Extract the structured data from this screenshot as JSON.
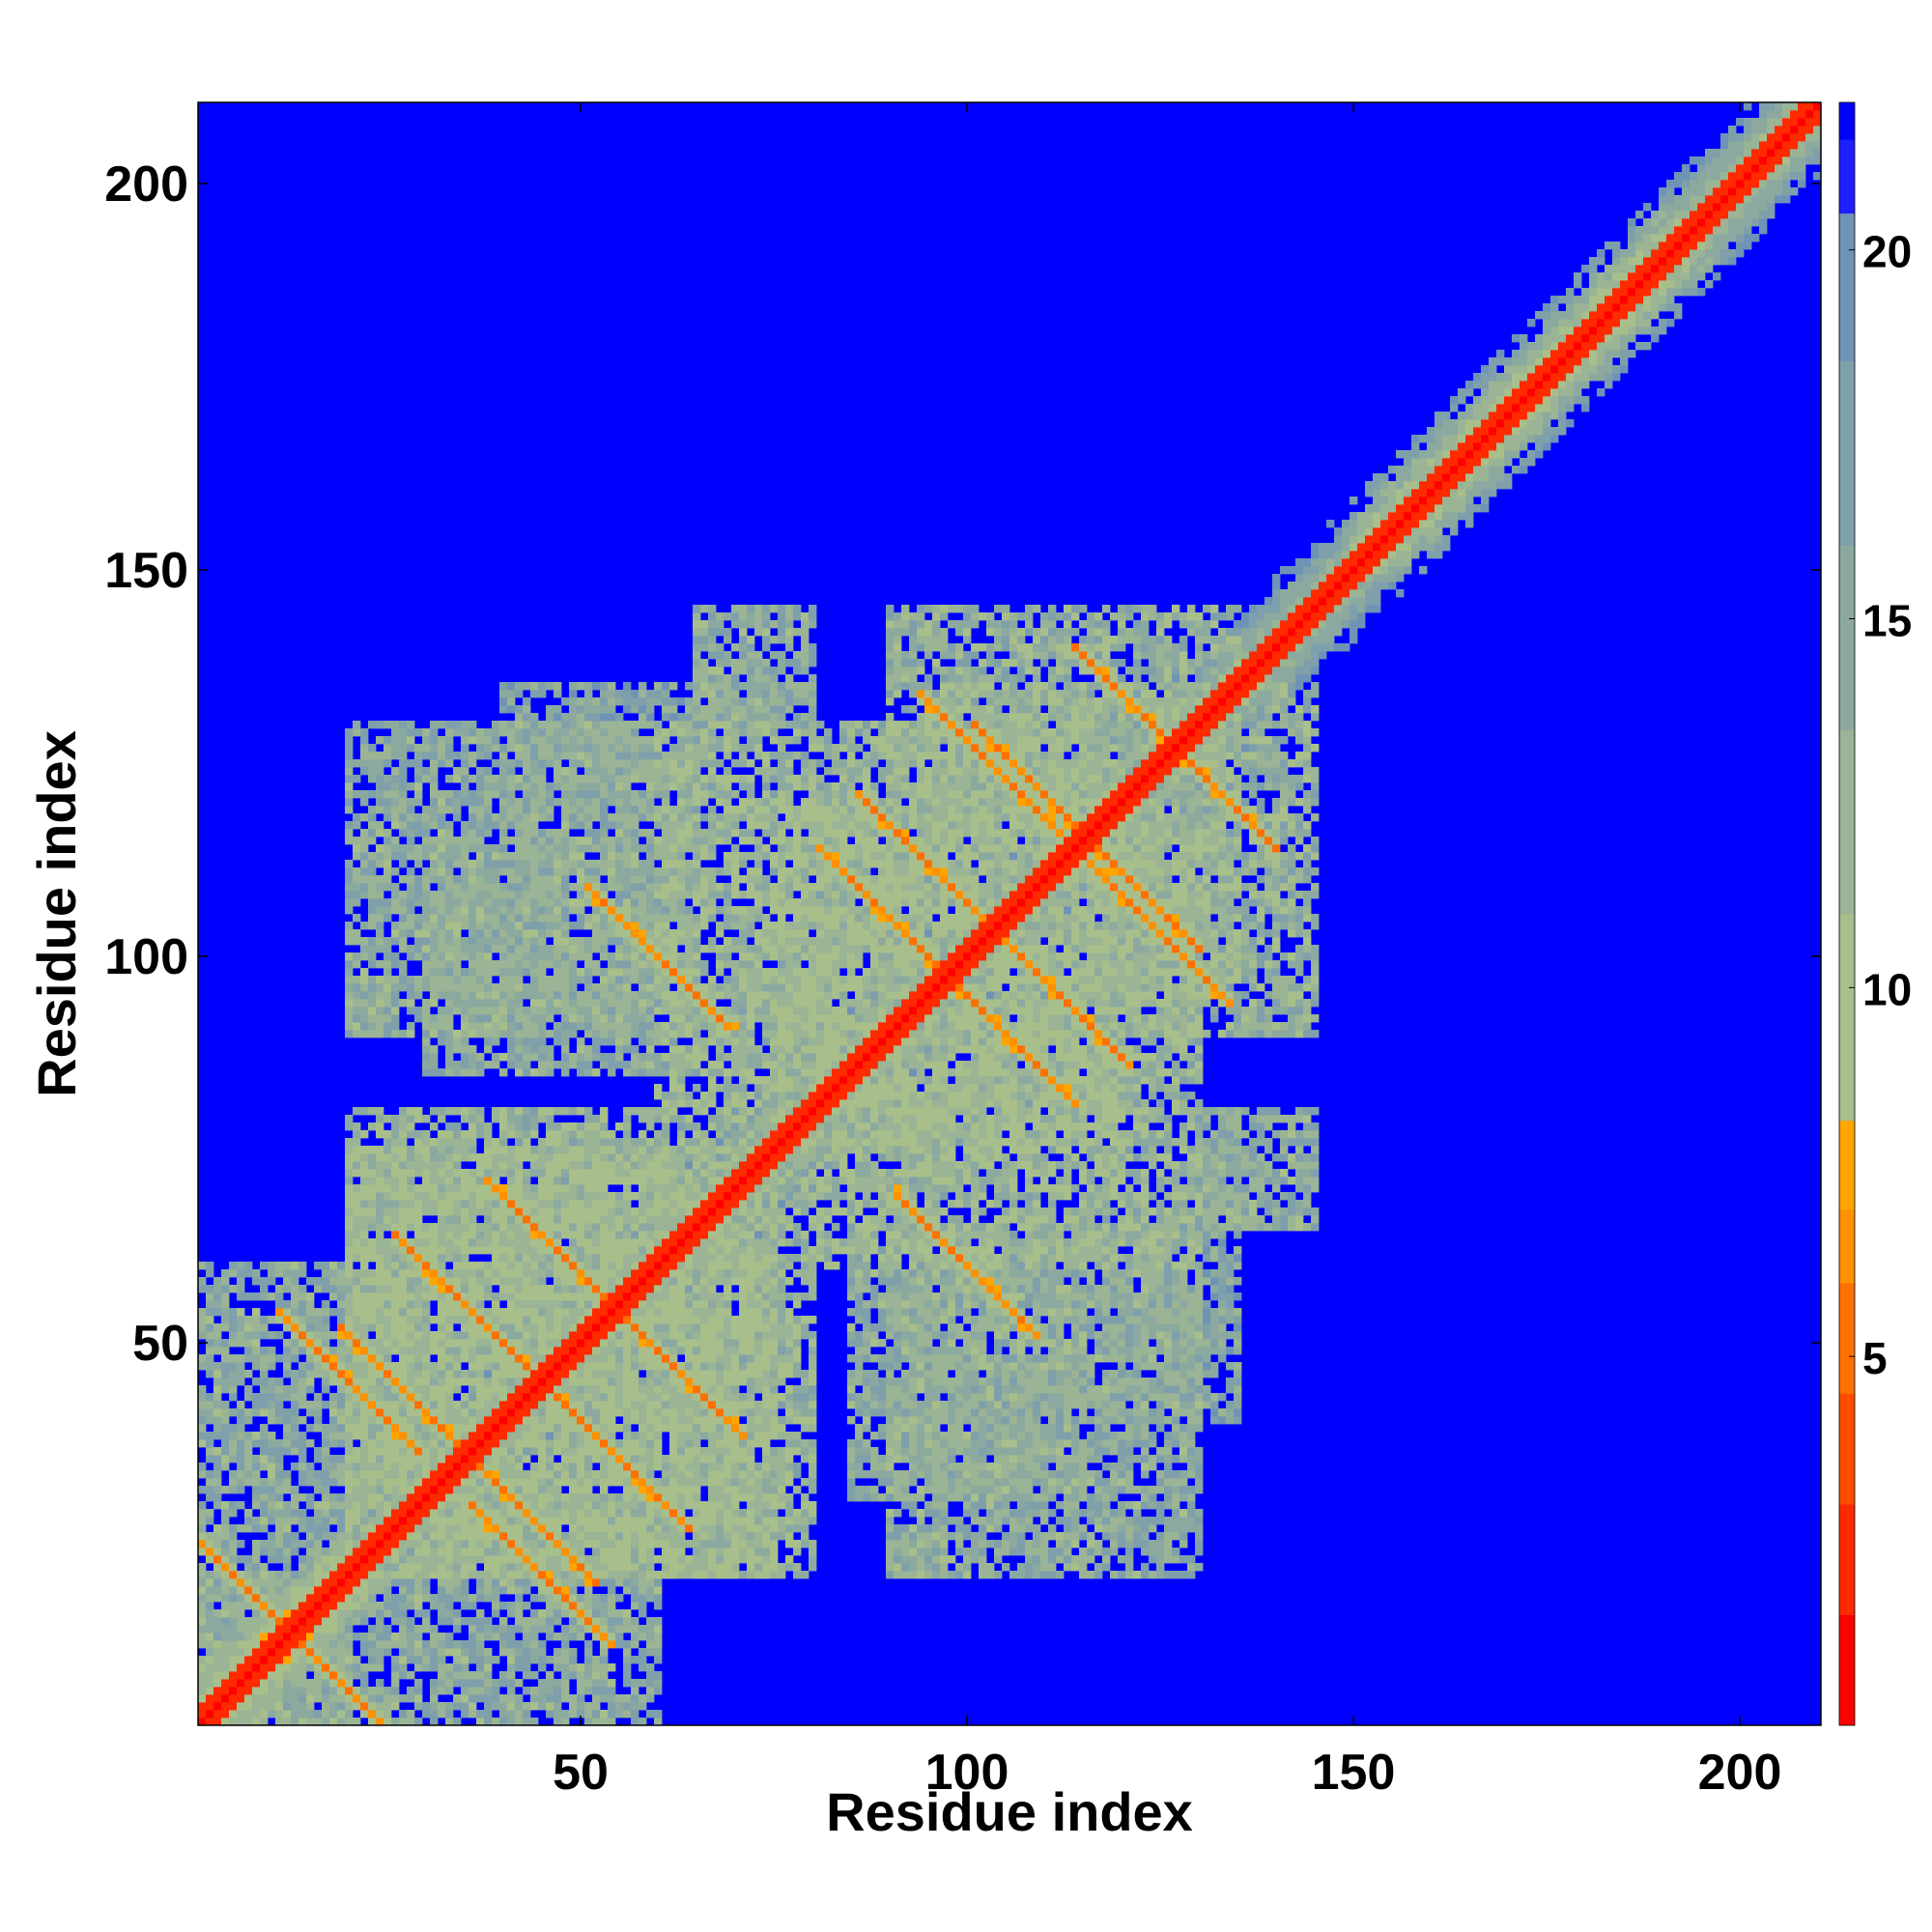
{
  "chart_data": {
    "type": "heatmap",
    "description_of_content": "Residue-residue distance map",
    "xlabel": "Residue index",
    "ylabel": "Residue index",
    "xlim": [
      1,
      210
    ],
    "ylim": [
      1,
      210
    ],
    "n_residues": 210,
    "x_ticks": [
      50,
      100,
      150,
      200
    ],
    "y_ticks": [
      50,
      100,
      150,
      200
    ],
    "x_tick_labels": [
      "50",
      "100",
      "150",
      "200"
    ],
    "y_tick_labels": [
      "50",
      "100",
      "150",
      "200"
    ],
    "colorbar": {
      "range": [
        0,
        22
      ],
      "ticks": [
        5,
        10,
        15,
        20
      ],
      "tick_labels": [
        "5",
        "10",
        "15",
        "20"
      ],
      "colors": [
        "#ff0000",
        "#ff2a00",
        "#ff4d00",
        "#ff7000",
        "#ff9000",
        "#ffa500",
        "#a8bf8c",
        "#9ab495",
        "#8ca9a0",
        "#7f9fab",
        "#6f93b5",
        "#1f1fff",
        "#0000ff"
      ],
      "boundaries": [
        0,
        1.5,
        3,
        4.5,
        6,
        7,
        8.2,
        11,
        13.5,
        16,
        18.5,
        20.5,
        21.5,
        22
      ],
      "over_color": "#0000ff"
    },
    "background_value": 22,
    "main_diagonal": {
      "from": 1,
      "to": 210,
      "value": 1.5
    },
    "helix_bands": [
      {
        "from": 1,
        "to": 20,
        "value": 5.5
      },
      {
        "from": 20,
        "to": 90,
        "value": 8.5
      },
      {
        "from": 90,
        "to": 150,
        "value": 9.0
      },
      {
        "from": 150,
        "to": 190,
        "value": 6.5
      },
      {
        "from": 190,
        "to": 210,
        "value": 8.0
      }
    ],
    "antiparallel_contacts": [
      {
        "residue_a": 20,
        "residue_b": 45,
        "value": 6
      },
      {
        "residue_a": 35,
        "residue_b": 55,
        "value": 6
      },
      {
        "residue_a": 28,
        "residue_b": 43,
        "value": 6
      },
      {
        "residue_a": 47,
        "residue_b": 62,
        "value": 6
      },
      {
        "residue_a": 60,
        "residue_b": 100,
        "value": 6
      },
      {
        "residue_a": 90,
        "residue_b": 105,
        "value": 6
      },
      {
        "residue_a": 95,
        "residue_b": 112,
        "value": 6
      },
      {
        "residue_a": 103,
        "residue_b": 125,
        "value": 6
      },
      {
        "residue_a": 110,
        "residue_b": 121,
        "value": 6
      },
      {
        "residue_a": 123,
        "residue_b": 131,
        "value": 6
      },
      {
        "residue_a": 7,
        "residue_b": 18,
        "value": 6
      }
    ],
    "contact_blocks": [
      {
        "x": [
          20,
          75
        ],
        "y": [
          20,
          80
        ],
        "value": 12.5
      },
      {
        "x": [
          60,
          120
        ],
        "y": [
          75,
          130
        ],
        "value": 12.5
      },
      {
        "x": [
          95,
          145
        ],
        "y": [
          90,
          135
        ],
        "value": 13.5
      },
      {
        "x": [
          30,
          80
        ],
        "y": [
          85,
          115
        ],
        "value": 14.5
      },
      {
        "x": [
          90,
          130
        ],
        "y": [
          20,
          65
        ],
        "value": 14.5
      },
      {
        "x": [
          1,
          20
        ],
        "y": [
          1,
          60
        ],
        "value": 14.5
      },
      {
        "x": [
          40,
          80
        ],
        "y": [
          118,
          135
        ],
        "value": 15.5
      },
      {
        "x": [
          130,
          145
        ],
        "y": [
          65,
          80
        ],
        "value": 14.5
      }
    ]
  }
}
